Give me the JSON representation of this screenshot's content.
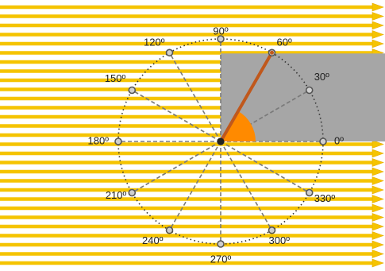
{
  "diagram": {
    "angle_labels": [
      "0º",
      "30º",
      "60º",
      "90º",
      "120º",
      "150º",
      "180º",
      "210º",
      "240º",
      "270º",
      "300º",
      "330º"
    ],
    "angles_deg": [
      0,
      30,
      60,
      90,
      120,
      150,
      180,
      210,
      240,
      270,
      300,
      330
    ],
    "incident_ray_angle_deg": 60,
    "highlighted_arc_deg": [
      0,
      60
    ],
    "colors": {
      "field_lines": "#f5c400",
      "field_line_outline": "#e6a800",
      "shadow_region": "#a6a6a6",
      "ray": "#c0581c",
      "arc_fill": "#ff8a00",
      "spokes": "#7a7a7a",
      "circle": "#333333",
      "point_fill": "#cfcfcf",
      "point_stroke": "#555555",
      "center_point": "#222222"
    },
    "icons": {
      "field_arrow": "arrow-right-icon",
      "point": "point-icon",
      "center": "center-point-icon"
    }
  }
}
